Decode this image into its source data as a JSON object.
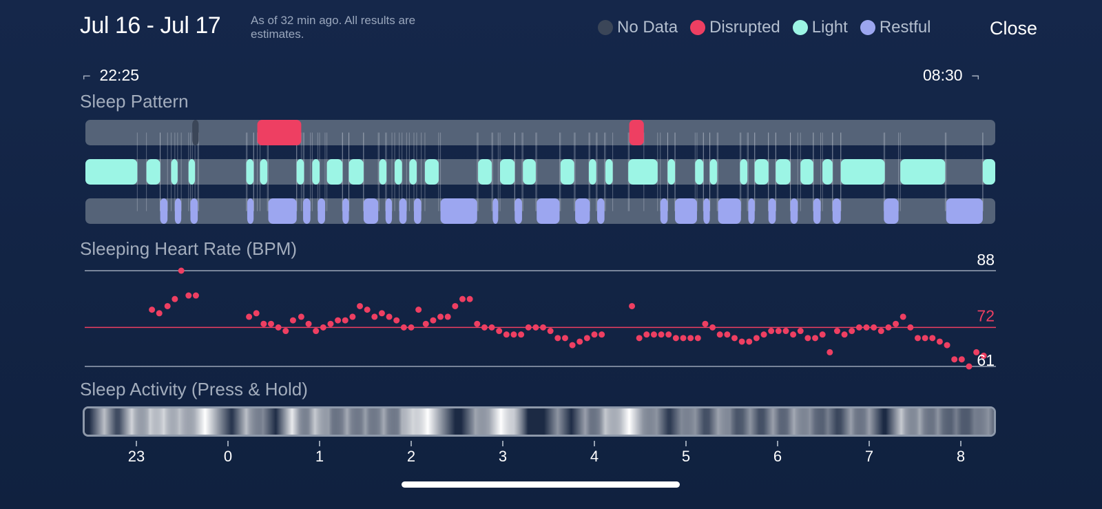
{
  "header": {
    "title": "Jul 16 - Jul 17",
    "subtitle": "As of 32 min ago. All results are estimates.",
    "close_label": "Close"
  },
  "legend": [
    {
      "label": "No Data",
      "color": "#3b4658"
    },
    {
      "label": "Disrupted",
      "color": "#ee3f62"
    },
    {
      "label": "Light",
      "color": "#9cf5e5"
    },
    {
      "label": "Restful",
      "color": "#9ca6f0"
    }
  ],
  "range": {
    "start": "22:25",
    "end": "08:30"
  },
  "sleep_pattern": {
    "title": "Sleep Pattern",
    "track_color": "#556378",
    "rows": [
      {
        "stage": "nodata",
        "color": "#3b4658",
        "segments": [
          [
            -0.39,
            -0.32
          ]
        ]
      },
      {
        "stage": "disrupted",
        "color": "#ee3f62",
        "segments": [
          [
            0.32,
            0.8
          ],
          [
            4.38,
            4.54
          ]
        ]
      },
      {
        "stage": "light",
        "color": "#9cf5e5",
        "segments": [
          [
            -1.56,
            -0.99
          ],
          [
            -0.89,
            -0.74
          ],
          [
            -0.62,
            -0.55
          ],
          [
            -0.43,
            -0.36
          ],
          [
            0.2,
            0.28
          ],
          [
            0.35,
            0.43
          ],
          [
            0.75,
            0.83
          ],
          [
            0.92,
            1.0
          ],
          [
            1.08,
            1.25
          ],
          [
            1.32,
            1.48
          ],
          [
            1.65,
            1.73
          ],
          [
            1.82,
            1.9
          ],
          [
            1.98,
            2.06
          ],
          [
            2.15,
            2.3
          ],
          [
            2.73,
            2.88
          ],
          [
            2.97,
            3.13
          ],
          [
            3.22,
            3.36
          ],
          [
            3.63,
            3.78
          ],
          [
            3.94,
            4.02
          ],
          [
            4.12,
            4.2
          ],
          [
            4.37,
            4.69
          ],
          [
            4.8,
            4.88
          ],
          [
            5.1,
            5.19
          ],
          [
            5.26,
            5.34
          ],
          [
            5.59,
            5.67
          ],
          [
            5.75,
            5.9
          ],
          [
            5.98,
            6.14
          ],
          [
            6.25,
            6.39
          ],
          [
            6.49,
            6.6
          ],
          [
            6.69,
            7.17
          ],
          [
            7.34,
            7.83
          ],
          [
            8.24,
            8.39
          ]
        ]
      },
      {
        "stage": "restful",
        "color": "#9ca6f0",
        "segments": [
          [
            -0.74,
            -0.66
          ],
          [
            -0.58,
            -0.51
          ],
          [
            -0.41,
            -0.33
          ],
          [
            0.21,
            0.28
          ],
          [
            0.44,
            0.75
          ],
          [
            0.82,
            0.9
          ],
          [
            0.98,
            1.06
          ],
          [
            1.25,
            1.32
          ],
          [
            1.48,
            1.64
          ],
          [
            1.72,
            1.79
          ],
          [
            1.87,
            1.95
          ],
          [
            2.03,
            2.11
          ],
          [
            2.32,
            2.72
          ],
          [
            2.89,
            2.95
          ],
          [
            3.13,
            3.21
          ],
          [
            3.37,
            3.62
          ],
          [
            3.79,
            3.95
          ],
          [
            4.03,
            4.11
          ],
          [
            4.72,
            4.8
          ],
          [
            4.88,
            5.12
          ],
          [
            5.19,
            5.26
          ],
          [
            5.35,
            5.6
          ],
          [
            5.68,
            5.75
          ],
          [
            5.9,
            5.98
          ],
          [
            6.14,
            6.22
          ],
          [
            6.39,
            6.47
          ],
          [
            6.6,
            6.69
          ],
          [
            7.16,
            7.32
          ],
          [
            7.84,
            8.24
          ]
        ]
      }
    ]
  },
  "heart_rate": {
    "title": "Sleeping Heart Rate (BPM)",
    "max_label": "88",
    "avg_label": "72",
    "min_label": "61",
    "max": 88,
    "avg": 72,
    "min": 61,
    "points": [
      [
        -0.83,
        77
      ],
      [
        -0.75,
        76
      ],
      [
        -0.66,
        78
      ],
      [
        -0.58,
        80
      ],
      [
        -0.51,
        88
      ],
      [
        -0.43,
        81
      ],
      [
        -0.35,
        81
      ],
      [
        0.23,
        75
      ],
      [
        0.31,
        76
      ],
      [
        0.39,
        73
      ],
      [
        0.47,
        73
      ],
      [
        0.55,
        72
      ],
      [
        0.63,
        71
      ],
      [
        0.71,
        74
      ],
      [
        0.8,
        75
      ],
      [
        0.88,
        73
      ],
      [
        0.96,
        71
      ],
      [
        1.04,
        72
      ],
      [
        1.12,
        73
      ],
      [
        1.2,
        74
      ],
      [
        1.28,
        74
      ],
      [
        1.36,
        75
      ],
      [
        1.44,
        78
      ],
      [
        1.52,
        77
      ],
      [
        1.6,
        75
      ],
      [
        1.68,
        76
      ],
      [
        1.76,
        75
      ],
      [
        1.84,
        74
      ],
      [
        1.92,
        72
      ],
      [
        2.0,
        72
      ],
      [
        2.08,
        77
      ],
      [
        2.16,
        73
      ],
      [
        2.24,
        74
      ],
      [
        2.32,
        75
      ],
      [
        2.4,
        75
      ],
      [
        2.48,
        78
      ],
      [
        2.56,
        80
      ],
      [
        2.64,
        80
      ],
      [
        2.72,
        73
      ],
      [
        2.8,
        72
      ],
      [
        2.88,
        72
      ],
      [
        2.96,
        71
      ],
      [
        3.04,
        70
      ],
      [
        3.12,
        70
      ],
      [
        3.2,
        70
      ],
      [
        3.28,
        72
      ],
      [
        3.36,
        72
      ],
      [
        3.44,
        72
      ],
      [
        3.52,
        71
      ],
      [
        3.6,
        69
      ],
      [
        3.68,
        69
      ],
      [
        3.76,
        67
      ],
      [
        3.84,
        68
      ],
      [
        3.92,
        69
      ],
      [
        4.0,
        70
      ],
      [
        4.08,
        70
      ],
      [
        4.41,
        78
      ],
      [
        4.49,
        69
      ],
      [
        4.57,
        70
      ],
      [
        4.65,
        70
      ],
      [
        4.73,
        70
      ],
      [
        4.81,
        70
      ],
      [
        4.89,
        69
      ],
      [
        4.97,
        69
      ],
      [
        5.05,
        69
      ],
      [
        5.13,
        69
      ],
      [
        5.21,
        73
      ],
      [
        5.29,
        72
      ],
      [
        5.37,
        70
      ],
      [
        5.45,
        70
      ],
      [
        5.53,
        69
      ],
      [
        5.61,
        68
      ],
      [
        5.69,
        68
      ],
      [
        5.77,
        69
      ],
      [
        5.85,
        70
      ],
      [
        5.93,
        71
      ],
      [
        6.01,
        71
      ],
      [
        6.09,
        71
      ],
      [
        6.17,
        70
      ],
      [
        6.25,
        71
      ],
      [
        6.33,
        69
      ],
      [
        6.41,
        69
      ],
      [
        6.49,
        70
      ],
      [
        6.57,
        65
      ],
      [
        6.65,
        71
      ],
      [
        6.73,
        70
      ],
      [
        6.81,
        71
      ],
      [
        6.89,
        72
      ],
      [
        6.97,
        72
      ],
      [
        7.05,
        72
      ],
      [
        7.13,
        71
      ],
      [
        7.21,
        72
      ],
      [
        7.29,
        73
      ],
      [
        7.37,
        75
      ],
      [
        7.45,
        72
      ],
      [
        7.53,
        69
      ],
      [
        7.61,
        69
      ],
      [
        7.69,
        69
      ],
      [
        7.77,
        68
      ],
      [
        7.85,
        67
      ],
      [
        7.93,
        63
      ],
      [
        8.01,
        63
      ],
      [
        8.09,
        61
      ],
      [
        8.17,
        65
      ],
      [
        8.25,
        64
      ]
    ]
  },
  "activity": {
    "title": "Sleep Activity (Press & Hold)",
    "bands": [
      [
        -1.35,
        0.7
      ],
      [
        -1.05,
        0.8
      ],
      [
        -0.85,
        0.75
      ],
      [
        -0.7,
        0.8
      ],
      [
        -0.53,
        0.7
      ],
      [
        -0.25,
        1.0
      ],
      [
        0.2,
        0.7
      ],
      [
        0.38,
        0.45
      ],
      [
        0.7,
        0.9
      ],
      [
        0.95,
        0.75
      ],
      [
        1.1,
        0.5
      ],
      [
        1.3,
        0.6
      ],
      [
        1.5,
        0.55
      ],
      [
        1.7,
        0.6
      ],
      [
        1.9,
        0.55
      ],
      [
        2.02,
        0.6
      ],
      [
        2.18,
        1.0
      ],
      [
        2.7,
        0.55
      ],
      [
        2.98,
        1.0
      ],
      [
        3.12,
        0.5
      ],
      [
        3.6,
        0.5
      ],
      [
        3.9,
        0.55
      ],
      [
        4.12,
        0.7
      ],
      [
        4.38,
        1.0
      ],
      [
        4.68,
        0.5
      ],
      [
        4.95,
        0.45
      ],
      [
        5.1,
        0.5
      ],
      [
        5.35,
        0.55
      ],
      [
        5.48,
        0.4
      ],
      [
        5.7,
        0.5
      ],
      [
        5.95,
        0.55
      ],
      [
        6.18,
        0.6
      ],
      [
        6.35,
        0.5
      ],
      [
        6.55,
        0.4
      ],
      [
        6.8,
        0.55
      ],
      [
        7.0,
        0.55
      ],
      [
        7.35,
        0.75
      ],
      [
        7.55,
        0.6
      ],
      [
        7.75,
        0.5
      ],
      [
        7.95,
        0.4
      ],
      [
        8.15,
        0.4
      ],
      [
        8.3,
        0.5
      ]
    ],
    "ticks": [
      "23",
      "0",
      "1",
      "2",
      "3",
      "4",
      "5",
      "6",
      "7",
      "8"
    ]
  }
}
